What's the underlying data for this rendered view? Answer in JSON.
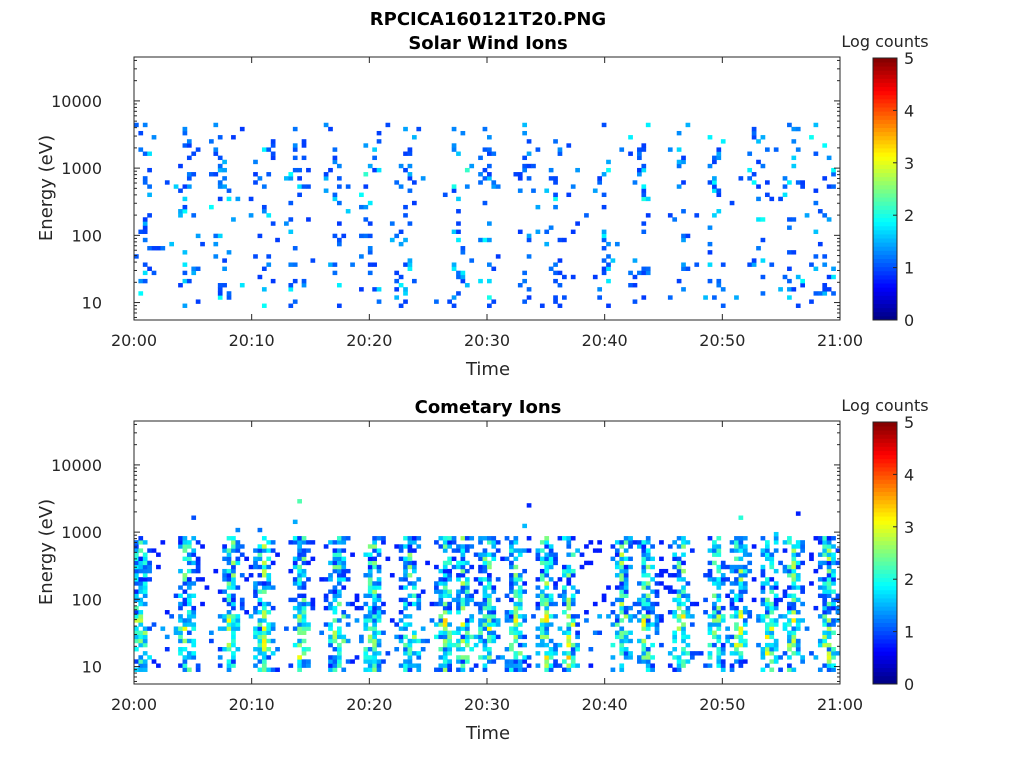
{
  "figure_title": "RPCICA160121T20.PNG",
  "chart_data": [
    {
      "type": "heatmap",
      "title": "Solar Wind Ions",
      "xlabel": "Time",
      "ylabel": "Energy (eV)",
      "x_ticks": [
        "20:00",
        "20:10",
        "20:20",
        "20:30",
        "20:40",
        "20:50",
        "21:00"
      ],
      "y_ticks": [
        "10",
        "100",
        "1000",
        "10000"
      ],
      "y_scale": "log",
      "ylim": [
        5.5,
        45000
      ],
      "xlim": [
        "20:00",
        "21:00"
      ],
      "colorbar": {
        "label": "Log counts",
        "ticks": [
          "0",
          "1",
          "2",
          "3",
          "4",
          "5"
        ],
        "range": [
          0,
          5
        ],
        "colormap": "jet"
      },
      "activity": "sparse",
      "seed": 17
    },
    {
      "type": "heatmap",
      "title": "Cometary Ions",
      "xlabel": "Time",
      "ylabel": "Energy (eV)",
      "x_ticks": [
        "20:00",
        "20:10",
        "20:20",
        "20:30",
        "20:40",
        "20:50",
        "21:00"
      ],
      "y_ticks": [
        "10",
        "100",
        "1000",
        "10000"
      ],
      "y_scale": "log",
      "ylim": [
        5.5,
        45000
      ],
      "xlim": [
        "20:00",
        "21:00"
      ],
      "colorbar": {
        "label": "Log counts",
        "ticks": [
          "0",
          "1",
          "2",
          "3",
          "4",
          "5"
        ],
        "range": [
          0,
          5
        ],
        "colormap": "jet"
      },
      "activity": "dense",
      "seed": 91
    }
  ]
}
